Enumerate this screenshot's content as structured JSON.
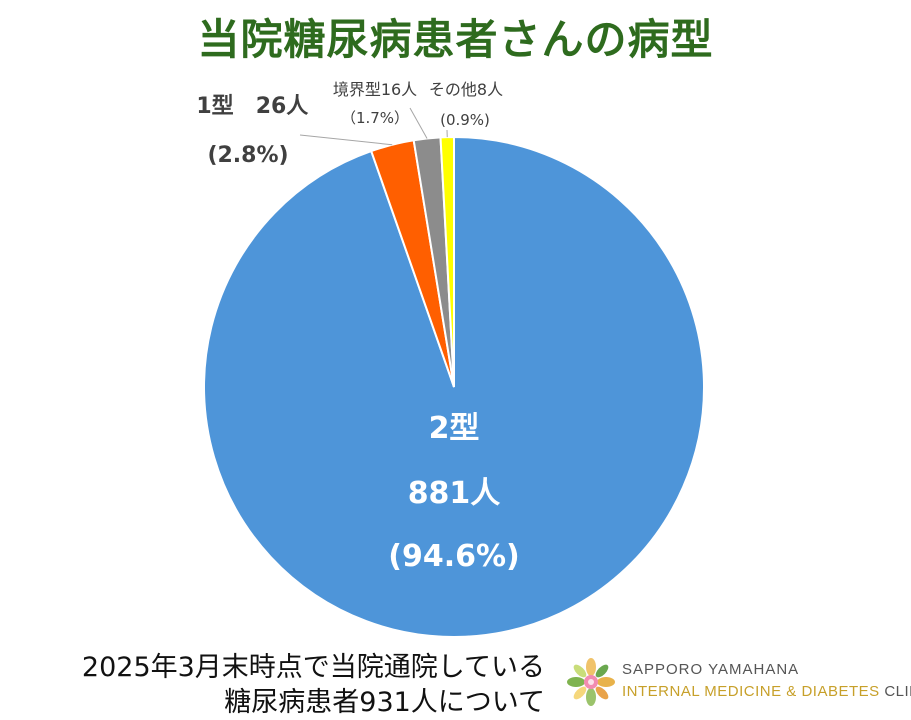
{
  "title": "当院糖尿病患者さんの病型",
  "chart_data": {
    "type": "pie",
    "start_angle_deg": 0,
    "direction": "clockwise",
    "slices": [
      {
        "name": "2型",
        "count_label": "881人",
        "pct_label": "(94.6%)",
        "count": 881,
        "percent": 94.6,
        "color": "#4e95d9"
      },
      {
        "name": "1型",
        "count_label": "26人",
        "pct_label": "(2.8%)",
        "count": 26,
        "percent": 2.8,
        "color": "#ff5f00"
      },
      {
        "name": "境界型",
        "count_label": "16人",
        "pct_label": "（1.7%）",
        "count": 16,
        "percent": 1.7,
        "color": "#8c8c8c"
      },
      {
        "name": "その他",
        "count_label": "8人",
        "pct_label": "(0.9%)",
        "count": 8,
        "percent": 0.9,
        "color": "#ffff00"
      }
    ]
  },
  "footnote": {
    "line1": "2025年3月末時点で当院通院している",
    "line2": "糖尿病患者931人について"
  },
  "logo": {
    "line1": "SAPPORO YAMAHANA",
    "line2_part1": "INTERNAL MEDICINE & DIABETES",
    "line2_part2": " CLINIC"
  }
}
